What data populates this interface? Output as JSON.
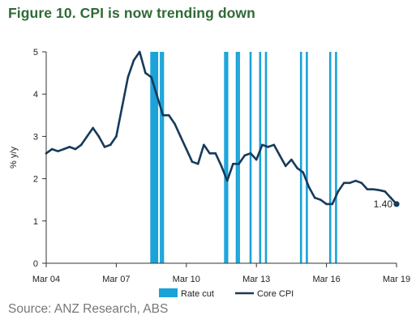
{
  "title": "Figure 10. CPI is now trending down",
  "source": "Source: ANZ Research, ABS",
  "colors": {
    "title": "#2f6b35",
    "rate_cut": "#1aa3d9",
    "core_cpi": "#173a5a",
    "source_text": "#777777"
  },
  "chart_data": {
    "type": "line",
    "title": "",
    "xlabel": "",
    "ylabel": "% y/y",
    "xlim": [
      2004.17,
      2019.17
    ],
    "ylim": [
      0,
      5
    ],
    "x_ticks": [
      2004.17,
      2007.17,
      2010.17,
      2013.17,
      2016.17,
      2019.17
    ],
    "x_tick_labels": [
      "Mar 04",
      "Mar 07",
      "Mar 10",
      "Mar 13",
      "Mar 16",
      "Mar 19"
    ],
    "y_ticks": [
      0,
      1,
      2,
      3,
      4,
      5
    ],
    "y_tick_labels": [
      "0",
      "1",
      "2",
      "3",
      "4",
      "5"
    ],
    "grid": false,
    "legend_position": "bottom",
    "series": [
      {
        "name": "Core CPI",
        "kind": "line",
        "x": [
          2004.17,
          2004.42,
          2004.67,
          2004.92,
          2005.17,
          2005.42,
          2005.67,
          2005.92,
          2006.17,
          2006.42,
          2006.67,
          2006.92,
          2007.17,
          2007.42,
          2007.67,
          2007.92,
          2008.17,
          2008.42,
          2008.67,
          2008.92,
          2009.17,
          2009.42,
          2009.67,
          2009.92,
          2010.17,
          2010.42,
          2010.67,
          2010.92,
          2011.17,
          2011.42,
          2011.67,
          2011.92,
          2012.17,
          2012.42,
          2012.67,
          2012.92,
          2013.17,
          2013.42,
          2013.67,
          2013.92,
          2014.17,
          2014.42,
          2014.67,
          2014.92,
          2015.17,
          2015.42,
          2015.67,
          2015.92,
          2016.17,
          2016.42,
          2016.67,
          2016.92,
          2017.17,
          2017.42,
          2017.67,
          2017.92,
          2018.17,
          2018.42,
          2018.67,
          2018.92,
          2019.17
        ],
        "values": [
          2.6,
          2.7,
          2.65,
          2.7,
          2.75,
          2.7,
          2.8,
          3.0,
          3.2,
          3.0,
          2.75,
          2.8,
          3.0,
          3.7,
          4.4,
          4.8,
          5.0,
          4.5,
          4.4,
          3.95,
          3.5,
          3.5,
          3.3,
          3.0,
          2.7,
          2.4,
          2.35,
          2.8,
          2.6,
          2.6,
          2.3,
          1.95,
          2.35,
          2.35,
          2.55,
          2.6,
          2.45,
          2.8,
          2.75,
          2.8,
          2.55,
          2.3,
          2.45,
          2.25,
          2.15,
          1.8,
          1.55,
          1.5,
          1.4,
          1.4,
          1.7,
          1.9,
          1.9,
          1.95,
          1.9,
          1.75,
          1.75,
          1.73,
          1.7,
          1.55,
          1.4
        ]
      },
      {
        "name": "Rate cut",
        "kind": "event-lines",
        "x": [
          2008.67,
          2008.75,
          2008.83,
          2008.92,
          2009.08,
          2009.17,
          2011.83,
          2011.92,
          2012.33,
          2012.42,
          2012.92,
          2013.33,
          2013.58,
          2015.08,
          2015.33,
          2016.33,
          2016.58
        ]
      }
    ],
    "annotations": [
      {
        "label": "1.40",
        "x": 2019.17,
        "y": 1.4
      }
    ]
  }
}
